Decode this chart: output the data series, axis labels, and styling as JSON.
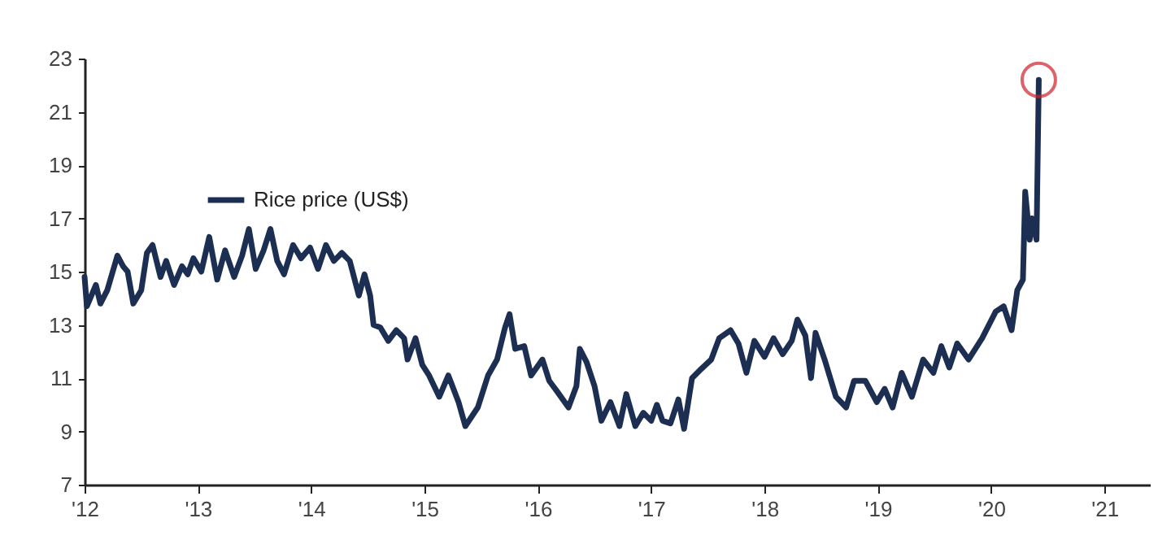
{
  "chart_data": {
    "type": "line",
    "x": [
      2012.0,
      2012.02,
      2012.1,
      2012.14,
      2012.2,
      2012.29,
      2012.34,
      2012.38,
      2012.43,
      2012.5,
      2012.55,
      2012.6,
      2012.67,
      2012.72,
      2012.79,
      2012.86,
      2012.91,
      2012.96,
      2013.03,
      2013.1,
      2013.17,
      2013.24,
      2013.32,
      2013.39,
      2013.45,
      2013.51,
      2013.58,
      2013.64,
      2013.7,
      2013.76,
      2013.84,
      2013.91,
      2013.99,
      2014.06,
      2014.13,
      2014.2,
      2014.27,
      2014.34,
      2014.42,
      2014.47,
      2014.52,
      2014.55,
      2014.61,
      2014.68,
      2014.75,
      2014.82,
      2014.85,
      2014.92,
      2014.98,
      2015.04,
      2015.13,
      2015.21,
      2015.3,
      2015.36,
      2015.47,
      2015.56,
      2015.64,
      2015.71,
      2015.75,
      2015.8,
      2015.88,
      2015.94,
      2016.04,
      2016.1,
      2016.17,
      2016.27,
      2016.34,
      2016.37,
      2016.43,
      2016.5,
      2016.56,
      2016.64,
      2016.72,
      2016.78,
      2016.86,
      2016.93,
      2017.0,
      2017.05,
      2017.1,
      2017.17,
      2017.24,
      2017.29,
      2017.36,
      2017.43,
      2017.53,
      2017.6,
      2017.7,
      2017.77,
      2017.84,
      2017.91,
      2018.0,
      2018.08,
      2018.16,
      2018.24,
      2018.29,
      2018.36,
      2018.41,
      2018.45,
      2018.53,
      2018.63,
      2018.72,
      2018.79,
      2018.89,
      2018.99,
      2019.06,
      2019.13,
      2019.21,
      2019.3,
      2019.4,
      2019.49,
      2019.56,
      2019.63,
      2019.7,
      2019.8,
      2019.92,
      2020.04,
      2020.11,
      2020.18,
      2020.23,
      2020.28,
      2020.3,
      2020.34,
      2020.36,
      2020.4,
      2020.42
    ],
    "series": [
      {
        "name": "Rice price (US$)",
        "color": "#1c2f52",
        "values": [
          14.8,
          13.7,
          14.5,
          13.8,
          14.3,
          15.6,
          15.2,
          15.0,
          13.8,
          14.3,
          15.7,
          16.0,
          14.8,
          15.4,
          14.5,
          15.2,
          14.9,
          15.5,
          15.0,
          16.3,
          14.7,
          15.8,
          14.8,
          15.6,
          16.6,
          15.1,
          15.8,
          16.6,
          15.4,
          14.9,
          16.0,
          15.5,
          15.9,
          15.1,
          16.0,
          15.4,
          15.7,
          15.4,
          14.1,
          14.9,
          14.1,
          13.0,
          12.9,
          12.4,
          12.8,
          12.5,
          11.7,
          12.5,
          11.5,
          11.1,
          10.3,
          11.1,
          10.1,
          9.2,
          9.9,
          11.1,
          11.7,
          12.9,
          13.4,
          12.1,
          12.2,
          11.1,
          11.7,
          10.9,
          10.5,
          9.9,
          10.7,
          12.1,
          11.6,
          10.7,
          9.4,
          10.1,
          9.2,
          10.4,
          9.2,
          9.7,
          9.4,
          10.0,
          9.4,
          9.3,
          10.2,
          9.1,
          11.0,
          11.3,
          11.7,
          12.5,
          12.8,
          12.3,
          11.2,
          12.4,
          11.8,
          12.5,
          11.9,
          12.4,
          13.2,
          12.6,
          11.0,
          12.7,
          11.7,
          10.3,
          9.9,
          10.9,
          10.9,
          10.1,
          10.6,
          9.9,
          11.2,
          10.3,
          11.7,
          11.2,
          12.2,
          11.4,
          12.3,
          11.7,
          12.5,
          13.5,
          13.7,
          12.8,
          14.3,
          14.7,
          18.0,
          16.2,
          17.0,
          16.2,
          22.2
        ]
      }
    ],
    "xlim": [
      2012,
      2021.4
    ],
    "xticks": [
      {
        "value": 2012,
        "label": "'12"
      },
      {
        "value": 2013,
        "label": "'13"
      },
      {
        "value": 2014,
        "label": "'14"
      },
      {
        "value": 2015,
        "label": "'15"
      },
      {
        "value": 2016,
        "label": "'16"
      },
      {
        "value": 2017,
        "label": "'17"
      },
      {
        "value": 2018,
        "label": "'18"
      },
      {
        "value": 2019,
        "label": "'19"
      },
      {
        "value": 2020,
        "label": "'20"
      },
      {
        "value": 2021,
        "label": "'21"
      }
    ],
    "ylim": [
      7,
      23
    ],
    "yticks": [
      7,
      9,
      11,
      13,
      15,
      17,
      19,
      21,
      23
    ],
    "legend": "top left",
    "grid": false,
    "marker": "none",
    "line_style": "solid"
  }
}
